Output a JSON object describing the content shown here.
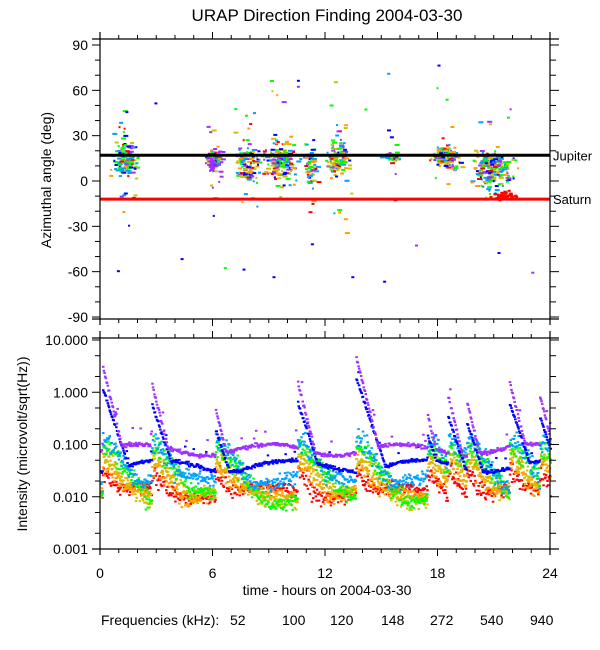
{
  "chart_data": [
    {
      "type": "scatter",
      "title": "URAP Direction Finding  2004-03-30",
      "xlabel": "",
      "ylabel": "Azimuthal angle (deg)",
      "xlim": [
        0,
        24
      ],
      "ylim": [
        -90,
        90
      ],
      "y_ticks": [
        "90",
        "60",
        "30",
        "0",
        "-30",
        "-60",
        "-90"
      ],
      "y_tick_values": [
        90,
        60,
        30,
        0,
        -30,
        -60,
        -90
      ],
      "reference_lines": [
        {
          "name": "Jupiter",
          "label": "Jupiter",
          "value": 17,
          "color": "#000000"
        },
        {
          "name": "Saturn",
          "label": "Saturn",
          "value": -12,
          "color": "#ff0000"
        }
      ],
      "clusters": [
        {
          "center_hour": 1.3,
          "spread_hour": 0.9,
          "center_deg": 14,
          "spread_deg": 14,
          "count": 150
        },
        {
          "center_hour": 6.0,
          "spread_hour": 0.6,
          "center_deg": 14,
          "spread_deg": 8,
          "count": 110
        },
        {
          "center_hour": 7.8,
          "spread_hour": 1.0,
          "center_deg": 12,
          "spread_deg": 16,
          "count": 130
        },
        {
          "center_hour": 9.6,
          "spread_hour": 1.1,
          "center_deg": 14,
          "spread_deg": 15,
          "count": 170
        },
        {
          "center_hour": 11.2,
          "spread_hour": 0.5,
          "center_deg": 10,
          "spread_deg": 18,
          "count": 60
        },
        {
          "center_hour": 12.6,
          "spread_hour": 0.8,
          "center_deg": 16,
          "spread_deg": 13,
          "count": 130
        },
        {
          "center_hour": 15.5,
          "spread_hour": 0.6,
          "center_deg": 16,
          "spread_deg": 3,
          "count": 60
        },
        {
          "center_hour": 18.4,
          "spread_hour": 0.9,
          "center_deg": 16,
          "spread_deg": 9,
          "count": 140
        },
        {
          "center_hour": 20.9,
          "spread_hour": 1.4,
          "center_deg": 9,
          "spread_deg": 15,
          "count": 220
        }
      ],
      "outliers": [
        {
          "hour": 2.9,
          "deg": 52,
          "series": "540"
        },
        {
          "hour": 10.5,
          "deg": 67,
          "series": "540"
        },
        {
          "hour": 10.5,
          "deg": 63,
          "series": "940"
        },
        {
          "hour": 18.0,
          "deg": 77,
          "series": "540"
        },
        {
          "hour": 14.1,
          "deg": 48,
          "series": "148"
        },
        {
          "hour": 0.9,
          "deg": -59,
          "series": "540"
        },
        {
          "hour": 4.3,
          "deg": -51,
          "series": "540"
        },
        {
          "hour": 9.2,
          "deg": -63,
          "series": "540"
        },
        {
          "hour": 13.4,
          "deg": -63,
          "series": "540"
        },
        {
          "hour": 15.1,
          "deg": -66,
          "series": "540"
        },
        {
          "hour": 23.0,
          "deg": -60,
          "series": "940"
        },
        {
          "hour": 21.2,
          "deg": -47,
          "series": "540"
        },
        {
          "hour": 6.6,
          "deg": -57,
          "series": "148"
        },
        {
          "hour": 7.6,
          "deg": -58,
          "series": "540"
        },
        {
          "hour": 16.8,
          "deg": -42,
          "series": "940"
        }
      ],
      "saturn_cluster": {
        "center_hour": 21.5,
        "spread_hour": 1.0,
        "center_deg": -9,
        "spread_deg": 4,
        "count": 50,
        "series": "52"
      }
    },
    {
      "type": "line",
      "title": "",
      "xlabel": "time - hours on 2004-03-30",
      "ylabel": "Intensity (microvolt/sqrt(Hz))",
      "xlim": [
        0,
        24
      ],
      "ylim": [
        0.001,
        10
      ],
      "yscale": "log",
      "x_ticks": [
        "0",
        "6",
        "12",
        "18",
        "24"
      ],
      "x_tick_values": [
        0,
        6,
        12,
        18,
        24
      ],
      "y_ticks": [
        "10.000",
        "1.000",
        "0.100",
        "0.010",
        "0.001"
      ],
      "y_tick_values": [
        10,
        1,
        0.1,
        0.01,
        0.001
      ],
      "burst_hours": [
        0.1,
        2.7,
        6.1,
        10.5,
        13.6,
        17.4,
        18.5,
        19.5,
        21.8,
        23.4
      ],
      "burst_peaks": [
        3.0,
        1.6,
        0.5,
        1.6,
        5.0,
        0.4,
        0.9,
        0.7,
        1.6,
        0.9
      ],
      "series": [
        {
          "name": "52",
          "color": "#ff0000",
          "baseline": 0.013,
          "burst_level": 0.03,
          "decay_hours": 0.9
        },
        {
          "name": "100",
          "color": "#ffa000",
          "baseline": 0.012,
          "burst_level": 0.045,
          "decay_hours": 1.0
        },
        {
          "name": "120",
          "color": "#d0c000",
          "baseline": 0.011,
          "burst_level": 0.06,
          "decay_hours": 1.1
        },
        {
          "name": "148",
          "color": "#00ff00",
          "baseline": 0.01,
          "burst_level": 0.09,
          "decay_hours": 1.0
        },
        {
          "name": "272",
          "color": "#00a0ff",
          "baseline": 0.022,
          "burst_level": 0.12,
          "decay_hours": 0.8
        },
        {
          "name": "540",
          "color": "#0000ff",
          "baseline": 0.042,
          "burst_level": 0.4,
          "decay_hours": 0.4
        },
        {
          "name": "940",
          "color": "#a030ff",
          "baseline": 0.085,
          "burst_level": 1.0,
          "decay_hours": 0.3
        }
      ]
    }
  ],
  "legend": {
    "label": "Frequencies (kHz):",
    "items": [
      {
        "label": "52",
        "color": "#ff0000"
      },
      {
        "label": "100",
        "color": "#ffa000"
      },
      {
        "label": "120",
        "color": "#d0c000"
      },
      {
        "label": "148",
        "color": "#00ff00"
      },
      {
        "label": "272",
        "color": "#00a0ff"
      },
      {
        "label": "540",
        "color": "#0000ff"
      },
      {
        "label": "940",
        "color": "#a030ff"
      }
    ]
  }
}
